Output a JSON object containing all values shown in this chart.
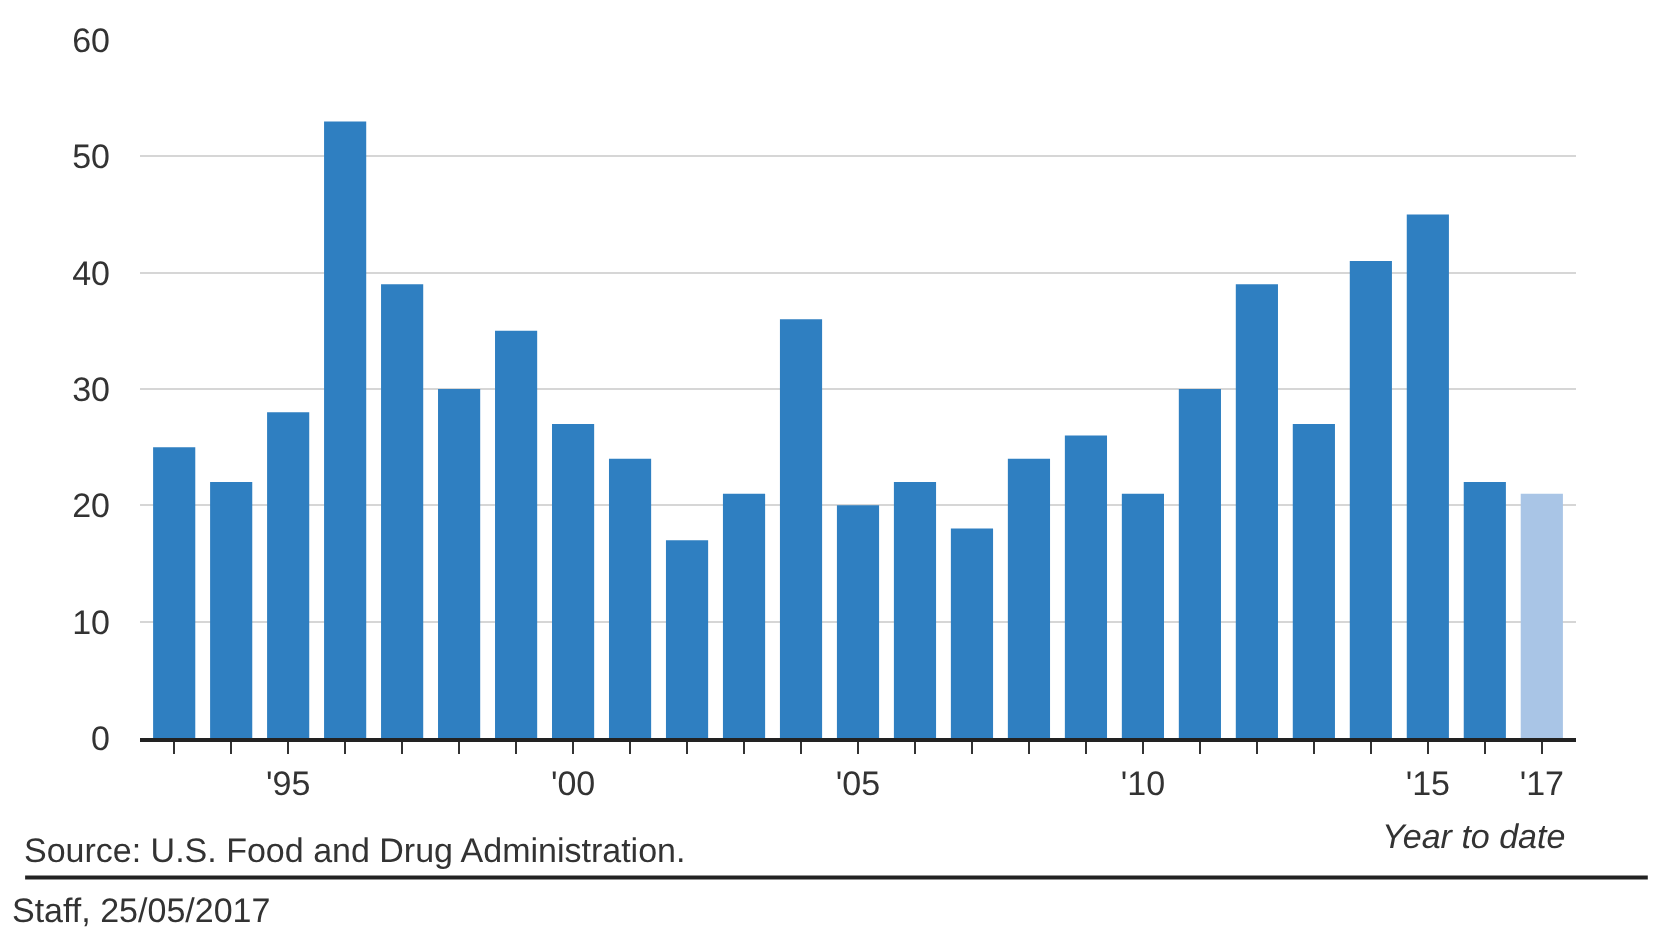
{
  "chart_data": {
    "type": "bar",
    "x": [
      1993,
      1994,
      1995,
      1996,
      1997,
      1998,
      1999,
      2000,
      2001,
      2002,
      2003,
      2004,
      2005,
      2006,
      2007,
      2008,
      2009,
      2010,
      2011,
      2012,
      2013,
      2014,
      2015,
      2016,
      2017
    ],
    "values": [
      25,
      22,
      28,
      53,
      39,
      30,
      35,
      27,
      24,
      17,
      21,
      36,
      20,
      22,
      18,
      24,
      26,
      21,
      30,
      39,
      27,
      41,
      45,
      22,
      21
    ],
    "colors": [
      "#2f7fc1",
      "#2f7fc1",
      "#2f7fc1",
      "#2f7fc1",
      "#2f7fc1",
      "#2f7fc1",
      "#2f7fc1",
      "#2f7fc1",
      "#2f7fc1",
      "#2f7fc1",
      "#2f7fc1",
      "#2f7fc1",
      "#2f7fc1",
      "#2f7fc1",
      "#2f7fc1",
      "#2f7fc1",
      "#2f7fc1",
      "#2f7fc1",
      "#2f7fc1",
      "#2f7fc1",
      "#2f7fc1",
      "#2f7fc1",
      "#2f7fc1",
      "#2f7fc1",
      "#a9c5e6"
    ],
    "xlim": [
      1992.4,
      2017.6
    ],
    "xticks": [
      {
        "value": 1993,
        "label": null
      },
      {
        "value": 1994,
        "label": null
      },
      {
        "value": 1995,
        "label": "'95"
      },
      {
        "value": 1996,
        "label": null
      },
      {
        "value": 1997,
        "label": null
      },
      {
        "value": 1998,
        "label": null
      },
      {
        "value": 1999,
        "label": null
      },
      {
        "value": 2000,
        "label": "'00"
      },
      {
        "value": 2001,
        "label": null
      },
      {
        "value": 2002,
        "label": null
      },
      {
        "value": 2003,
        "label": null
      },
      {
        "value": 2004,
        "label": null
      },
      {
        "value": 2005,
        "label": "'05"
      },
      {
        "value": 2006,
        "label": null
      },
      {
        "value": 2007,
        "label": null
      },
      {
        "value": 2008,
        "label": null
      },
      {
        "value": 2009,
        "label": null
      },
      {
        "value": 2010,
        "label": "'10"
      },
      {
        "value": 2011,
        "label": null
      },
      {
        "value": 2012,
        "label": null
      },
      {
        "value": 2013,
        "label": null
      },
      {
        "value": 2014,
        "label": null
      },
      {
        "value": 2015,
        "label": "'15"
      },
      {
        "value": 2016,
        "label": null
      },
      {
        "value": 2017,
        "label": "'17"
      }
    ],
    "ylim": [
      0,
      60
    ],
    "yticks": [
      0,
      10,
      20,
      30,
      40,
      50,
      60
    ],
    "grid": "y",
    "annotations": [
      {
        "text": "Year to date",
        "x": 2017,
        "y": 0
      },
      "Source: U.S. Food and Drug Administration.",
      "Staff, 25/05/2017"
    ]
  }
}
